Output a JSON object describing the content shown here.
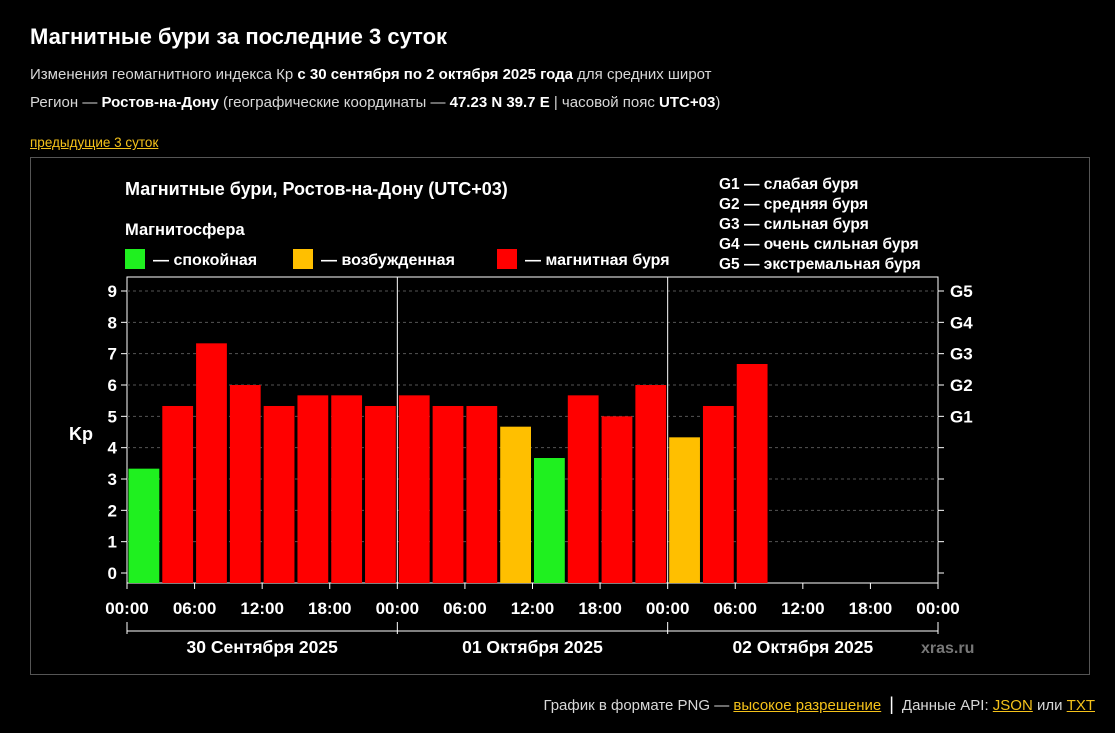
{
  "page": {
    "title": "Магнитные бури за последние 3 суток",
    "line1": {
      "t1": "Изменения геомагнитного индекса Кр ",
      "b1": "с 30 сентября по 2 октября 2025 года",
      "t2": " для средних широт"
    },
    "line2": {
      "t1": "Регион — ",
      "b1": "Ростов-на-Дону",
      "t2": " (географические координаты — ",
      "b2": "47.23 N 39.7 E",
      "t3": " | часовой пояс ",
      "b3": "UTC+03",
      "t4": ")"
    },
    "prev_link": "предыдущие 3 суток"
  },
  "footer": {
    "png_text": "График в формате PNG — ",
    "hires_link": "высокое разрешение",
    "separator": "|",
    "api_text": "Данные API: ",
    "json_link": "JSON",
    "or_text": " или ",
    "txt_link": "TXT"
  },
  "chart_data": {
    "type": "bar",
    "title": "Магнитные бури, Ростов-на-Дону (UTC+03)",
    "legend_title": "Магнитосфера",
    "legend": [
      {
        "label": "— спокойная",
        "color": "#1ff01f"
      },
      {
        "label": "— возбужденная",
        "color": "#ffbf00"
      },
      {
        "label": "— магнитная буря",
        "color": "#ff0000"
      }
    ],
    "storm_scale": [
      "G1 — слабая буря",
      "G2 — средняя буря",
      "G3 — сильная буря",
      "G4 — очень сильная буря",
      "G5 — экстремальная буря"
    ],
    "ylabel": "Kp",
    "ylim": [
      0,
      9
    ],
    "y_ticks": [
      "0",
      "1",
      "2",
      "3",
      "4",
      "5",
      "6",
      "7",
      "8",
      "9"
    ],
    "right_ticks": [
      {
        "label": "G1",
        "value": 5
      },
      {
        "label": "G2",
        "value": 6
      },
      {
        "label": "G3",
        "value": 7
      },
      {
        "label": "G4",
        "value": 8
      },
      {
        "label": "G5",
        "value": 9
      }
    ],
    "x_ticks": [
      "00:00",
      "06:00",
      "12:00",
      "18:00",
      "00:00",
      "06:00",
      "12:00",
      "18:00",
      "00:00",
      "06:00",
      "12:00",
      "18:00",
      "00:00"
    ],
    "days": [
      "30 Сентября 2025",
      "01 Октября 2025",
      "02 Октября 2025"
    ],
    "intervals_per_day": 8,
    "values": [
      3.33,
      5.33,
      7.33,
      6.0,
      5.33,
      5.67,
      5.67,
      5.33,
      5.67,
      5.33,
      5.33,
      4.67,
      3.67,
      5.67,
      5.0,
      6.0,
      4.33,
      5.33,
      6.67
    ],
    "colors": {
      "quiet": "#1ff01f",
      "active": "#ffbf00",
      "storm": "#ff0000"
    },
    "watermark": "xras.ru",
    "grid": true
  }
}
